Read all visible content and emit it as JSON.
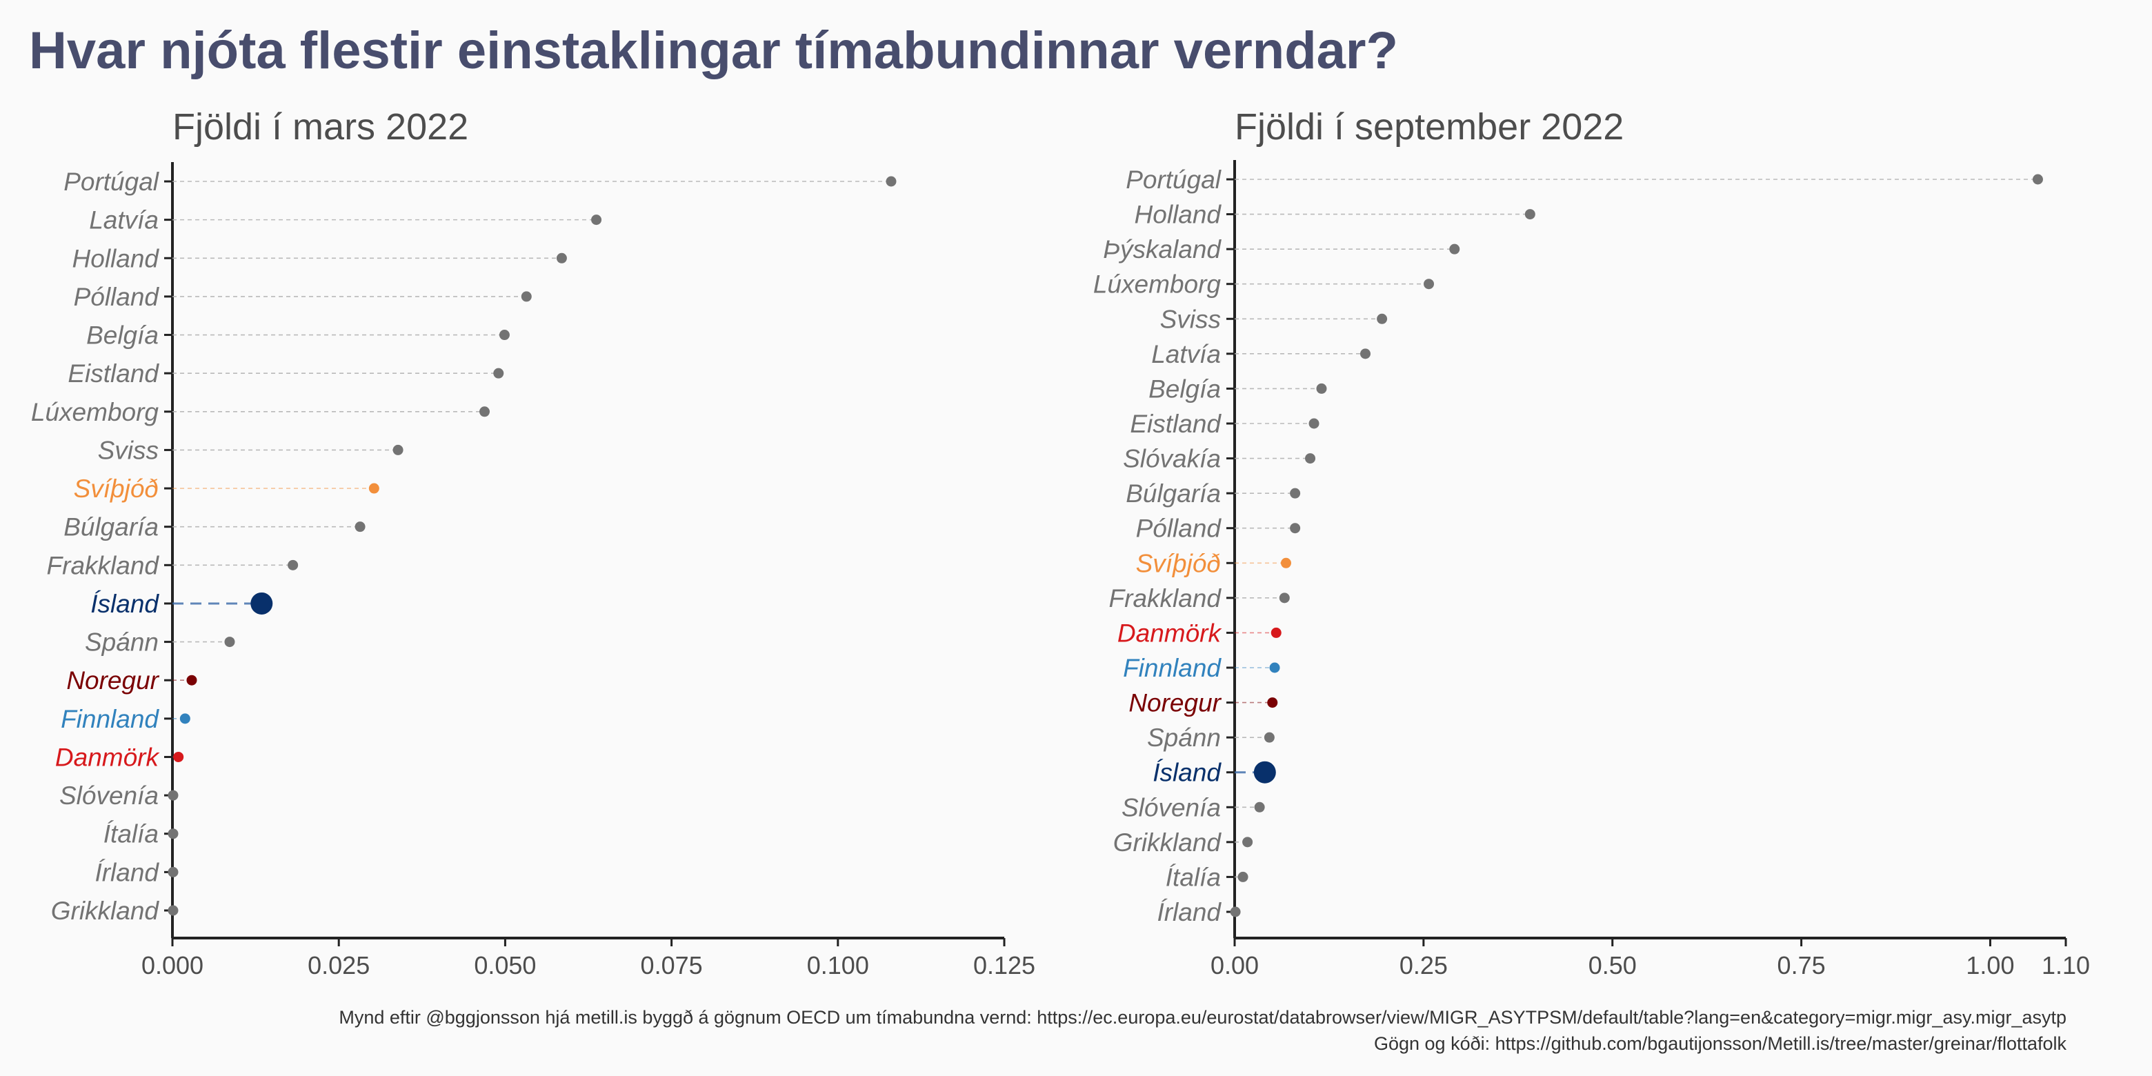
{
  "title": "Hvar njóta flestir einstaklingar tímabundinnar verndar?",
  "caption": {
    "line1": "Mynd eftir @bggjonsson hjá metill.is byggð á gögnum OECD um tímabundna vernd: https://ec.europa.eu/eurostat/databrowser/view/MIGR_ASYTPSM/default/table?lang=en&category=migr.migr_asy.migr_asytp",
    "line2": "Gögn og kóði: https://github.com/bgautijonsson/Metill.is/tree/master/greinar/flottafolk"
  },
  "colors": {
    "default": "#737373",
    "Svíþjóð": "#f28f3b",
    "Ísland": "#08306b",
    "Noregur": "#7a0103",
    "Finnland": "#3182bd",
    "Danmörk": "#d7191c"
  },
  "chart_data": [
    {
      "type": "scatter",
      "subtitle": "Fjöldi í mars 2022",
      "xlim": [
        0,
        0.125
      ],
      "xticks": [
        0,
        0.025,
        0.05,
        0.075,
        0.1,
        0.125
      ],
      "xtick_labels": [
        "0.000",
        "0.025",
        "0.050",
        "0.075",
        "0.100",
        "0.125"
      ],
      "categories": [
        "Portúgal",
        "Latvía",
        "Holland",
        "Pólland",
        "Belgía",
        "Eistland",
        "Lúxemborg",
        "Sviss",
        "Svíþjóð",
        "Búlgaría",
        "Frakkland",
        "Ísland",
        "Spánn",
        "Noregur",
        "Finnland",
        "Danmörk",
        "Slóvenía",
        "Ítalía",
        "Írland",
        "Grikkland"
      ],
      "values": [
        0.108,
        0.0637,
        0.0585,
        0.0532,
        0.0499,
        0.049,
        0.0469,
        0.0339,
        0.0303,
        0.0282,
        0.0181,
        0.0134,
        0.0086,
        0.0029,
        0.0019,
        0.0009,
        0.0001,
        0.0001,
        0.0001,
        0.0001
      ]
    },
    {
      "type": "scatter",
      "subtitle": "Fjöldi í september 2022",
      "xlim": [
        0,
        1.1
      ],
      "xticks": [
        0,
        0.25,
        0.5,
        0.75,
        1.0,
        1.1
      ],
      "xtick_labels": [
        "0.00",
        "0.25",
        "0.50",
        "0.75",
        "1.00",
        "1.10"
      ],
      "categories": [
        "Portúgal",
        "Holland",
        "Þýskaland",
        "Lúxemborg",
        "Sviss",
        "Latvía",
        "Belgía",
        "Eistland",
        "Slóvakía",
        "Búlgaría",
        "Pólland",
        "Svíþjóð",
        "Frakkland",
        "Danmörk",
        "Finnland",
        "Noregur",
        "Spánn",
        "Ísland",
        "Slóvenía",
        "Grikkland",
        "Ítalía",
        "Írland"
      ],
      "values": [
        1.063,
        0.391,
        0.291,
        0.257,
        0.195,
        0.173,
        0.115,
        0.105,
        0.1,
        0.08,
        0.08,
        0.068,
        0.066,
        0.055,
        0.053,
        0.05,
        0.046,
        0.04,
        0.033,
        0.017,
        0.011,
        0.001
      ]
    }
  ]
}
